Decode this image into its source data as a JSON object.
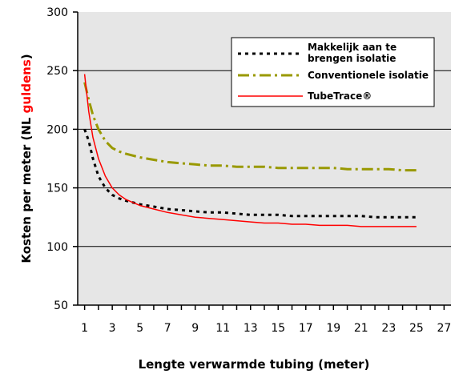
{
  "chart_data": {
    "type": "line",
    "xlabel": "Lengte verwarmde tubing (meter)",
    "ylabel_parts": [
      "Kosten per meter (NL ",
      "guldens",
      ")"
    ],
    "ylim": [
      50,
      300
    ],
    "xlim": [
      0.5,
      27.5
    ],
    "yticks": [
      50,
      100,
      150,
      200,
      250,
      300
    ],
    "xticks": [
      1,
      3,
      5,
      7,
      9,
      11,
      13,
      15,
      17,
      19,
      21,
      23,
      25,
      27
    ],
    "grid": "horizontal",
    "legend_placement": "top-right",
    "series": [
      {
        "name": "Makkelijk aan te brengen isolatie",
        "name_lines": [
          "Makkelijk aan te",
          "brengen isolatie"
        ],
        "color": "#000000",
        "style": "dotted",
        "x": [
          1,
          1.3,
          1.6,
          2,
          2.5,
          3,
          3.5,
          4,
          5,
          6,
          7,
          8,
          9,
          10,
          11,
          12,
          13,
          14,
          15,
          16,
          17,
          18,
          19,
          20,
          21,
          22,
          23,
          24,
          25
        ],
        "y": [
          200,
          190,
          175,
          160,
          150,
          144,
          141,
          139,
          136,
          134,
          132,
          131,
          130,
          129,
          129,
          128,
          127,
          127,
          127,
          126,
          126,
          126,
          126,
          126,
          126,
          125,
          125,
          125,
          125
        ]
      },
      {
        "name": "Conventionele isolatie",
        "color": "#999900",
        "style": "dashdot",
        "x": [
          1,
          1.3,
          1.6,
          2,
          2.5,
          3,
          3.5,
          4,
          5,
          6,
          7,
          8,
          9,
          10,
          11,
          12,
          13,
          14,
          15,
          16,
          17,
          18,
          19,
          20,
          21,
          22,
          23,
          24,
          25
        ],
        "y": [
          240,
          225,
          212,
          200,
          190,
          184,
          181,
          179,
          176,
          174,
          172,
          171,
          170,
          169,
          169,
          168,
          168,
          168,
          167,
          167,
          167,
          167,
          167,
          166,
          166,
          166,
          166,
          165,
          165
        ]
      },
      {
        "name": "TubeTrace®",
        "color": "#ff0000",
        "style": "solid",
        "x": [
          1,
          1.3,
          1.6,
          2,
          2.5,
          3,
          3.5,
          4,
          5,
          6,
          7,
          8,
          9,
          10,
          11,
          12,
          13,
          14,
          15,
          16,
          17,
          18,
          19,
          20,
          21,
          22,
          23,
          24,
          25
        ],
        "y": [
          247,
          215,
          193,
          175,
          160,
          150,
          144,
          140,
          135,
          132,
          129,
          127,
          125,
          124,
          123,
          122,
          121,
          120,
          120,
          119,
          119,
          118,
          118,
          118,
          117,
          117,
          117,
          117,
          117
        ]
      }
    ]
  },
  "colors": {
    "plot_background": "#e6e6e6",
    "gridline": "#000000",
    "ylabel_highlight": "#ff0000"
  }
}
